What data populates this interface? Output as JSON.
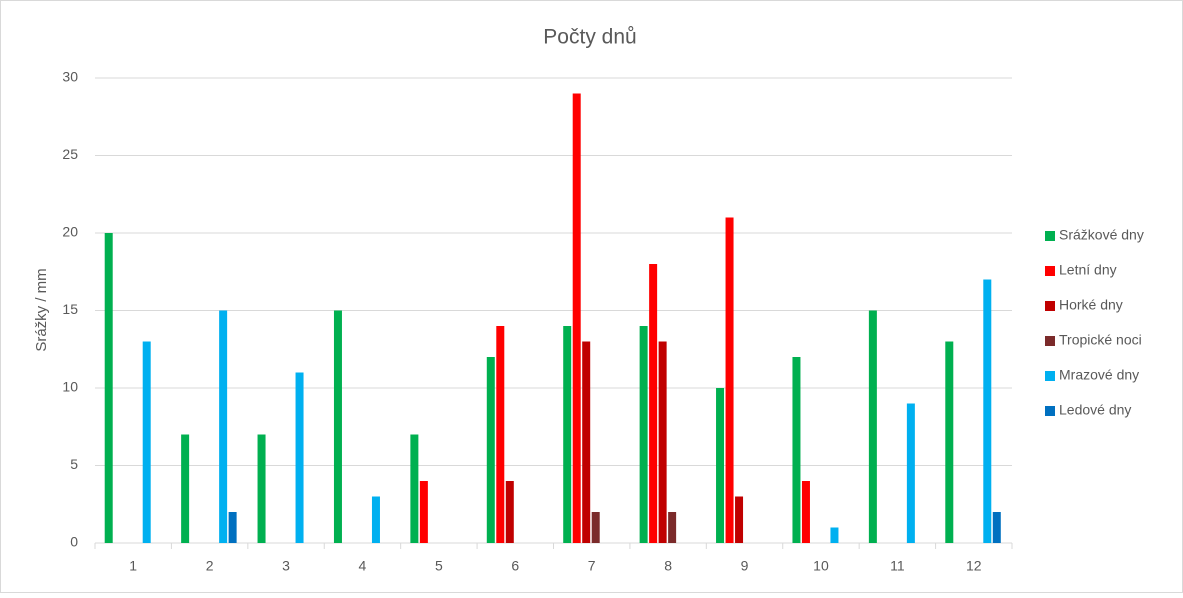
{
  "chart_data": {
    "type": "bar",
    "title": "Počty dnů",
    "y_label": "Srážky / mm",
    "categories": [
      "1",
      "2",
      "3",
      "4",
      "5",
      "6",
      "7",
      "8",
      "9",
      "10",
      "11",
      "12"
    ],
    "series": [
      {
        "name": "Srážkové dny",
        "color": "#00b050",
        "values": [
          20,
          7,
          7,
          15,
          7,
          12,
          14,
          14,
          10,
          12,
          15,
          13
        ]
      },
      {
        "name": "Letní dny",
        "color": "#ff0000",
        "values": [
          0,
          0,
          0,
          0,
          4,
          14,
          29,
          18,
          21,
          4,
          0,
          0
        ]
      },
      {
        "name": "Horké dny",
        "color": "#c00000",
        "values": [
          0,
          0,
          0,
          0,
          0,
          4,
          13,
          13,
          3,
          0,
          0,
          0
        ]
      },
      {
        "name": "Tropické noci",
        "color": "#7b2a2a",
        "values": [
          0,
          0,
          0,
          0,
          0,
          0,
          2,
          2,
          0,
          0,
          0,
          0
        ]
      },
      {
        "name": "Mrazové dny",
        "color": "#00b0f0",
        "values": [
          13,
          15,
          11,
          3,
          0,
          0,
          0,
          0,
          0,
          1,
          9,
          17
        ]
      },
      {
        "name": "Ledové dny",
        "color": "#0070c0",
        "values": [
          0,
          2,
          0,
          0,
          0,
          0,
          0,
          0,
          0,
          0,
          0,
          2
        ]
      }
    ],
    "ylim": [
      0,
      30
    ],
    "yticks": [
      0,
      5,
      10,
      15,
      20,
      25,
      30
    ],
    "grid": true,
    "legend": "right"
  }
}
